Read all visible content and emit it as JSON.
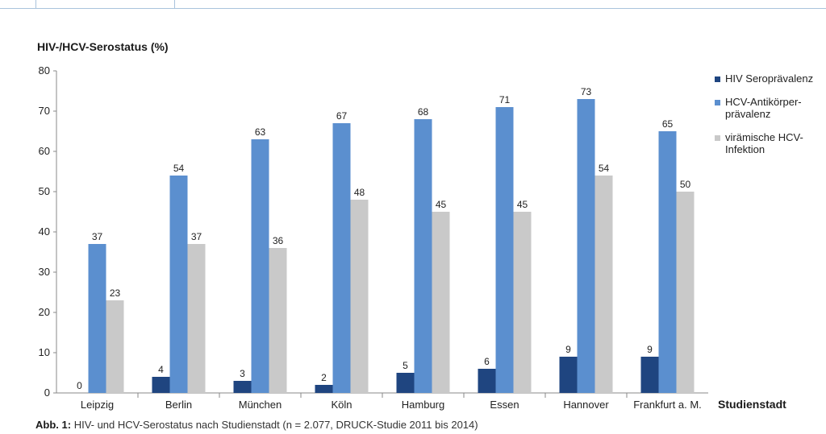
{
  "chart_data": {
    "type": "bar",
    "ylabel": "HIV-/HCV-Serostatus (%)",
    "xlabel": "Studienstadt",
    "ylim": [
      0,
      80
    ],
    "yticks": [
      0,
      10,
      20,
      30,
      40,
      50,
      60,
      70,
      80
    ],
    "categories": [
      "Leipzig",
      "Berlin",
      "München",
      "Köln",
      "Hamburg",
      "Essen",
      "Hannover",
      "Frankfurt a. M."
    ],
    "series": [
      {
        "name": "HIV Seroprävalenz",
        "color": "#1f4580",
        "values": [
          0,
          4,
          3,
          2,
          5,
          6,
          9,
          9
        ]
      },
      {
        "name": "HCV-Antikörper-prävalenz",
        "color": "#5b8fcf",
        "values": [
          37,
          54,
          63,
          67,
          68,
          71,
          73,
          65
        ]
      },
      {
        "name": "virämische HCV-Infektion",
        "color": "#c9c9c9",
        "values": [
          23,
          37,
          36,
          48,
          45,
          45,
          54,
          50
        ]
      }
    ],
    "legend_position": "right",
    "grid": false
  },
  "legend": {
    "items": [
      {
        "label": "HIV Seroprävalenz",
        "color": "#1f4580"
      },
      {
        "label": "HCV-Antikörper-\nprävalenz",
        "color": "#5b8fcf"
      },
      {
        "label": "virämische HCV-\nInfektion",
        "color": "#c9c9c9"
      }
    ]
  },
  "caption": {
    "label": "Abb. 1:",
    "text": "HIV- und HCV-Serostatus nach Studienstadt (n = 2.077, DRUCK-Studie 2011 bis 2014)"
  }
}
